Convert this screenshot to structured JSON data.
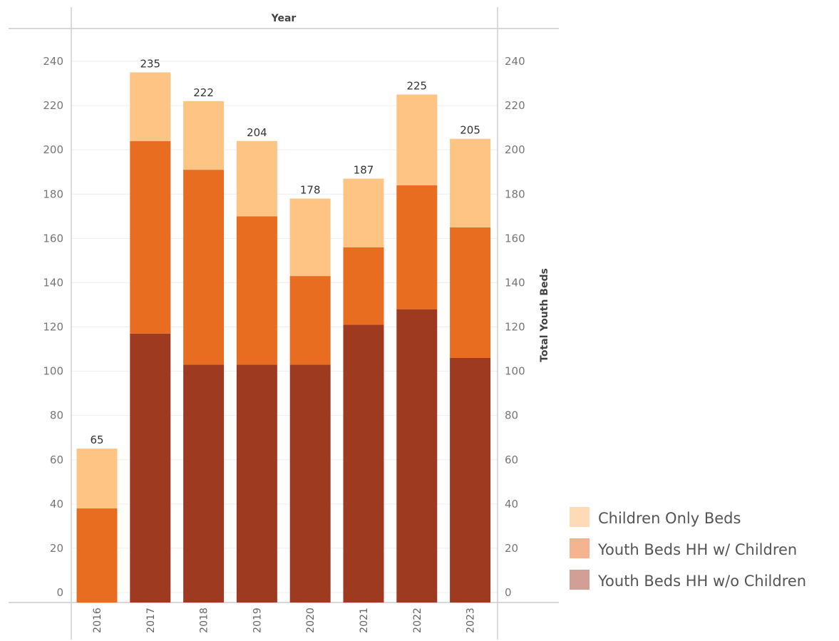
{
  "chart_data": {
    "type": "bar",
    "stacked": true,
    "x_header": "Year",
    "ylabel": "Total Youth Beds",
    "categories": [
      "2016",
      "2017",
      "2018",
      "2019",
      "2020",
      "2021",
      "2022",
      "2023"
    ],
    "series": [
      {
        "name": "Youth Beds HH w/o Children",
        "color": "#9e3a20",
        "values": [
          0,
          117,
          103,
          103,
          103,
          121,
          128,
          106
        ]
      },
      {
        "name": "Youth Beds HH w/ Children",
        "color": "#e96d20",
        "values": [
          38,
          87,
          88,
          67,
          40,
          35,
          56,
          59
        ]
      },
      {
        "name": "Children Only Beds",
        "color": "#fdc484",
        "values": [
          27,
          31,
          31,
          34,
          35,
          31,
          41,
          40
        ]
      }
    ],
    "totals": [
      65,
      235,
      222,
      204,
      178,
      187,
      225,
      205
    ],
    "ylim": [
      0,
      240
    ],
    "yticks": [
      0,
      20,
      40,
      60,
      80,
      100,
      120,
      140,
      160,
      180,
      200,
      220,
      240
    ],
    "grid": true,
    "legend": {
      "position": "bottom-right",
      "entries": [
        {
          "label": "Children Only Beds",
          "color": "#fddbb6"
        },
        {
          "label": "Youth Beds HH w/ Children",
          "color": "#f6b38f"
        },
        {
          "label": "Youth Beds HH w/o Children",
          "color": "#d29f97"
        }
      ]
    }
  }
}
